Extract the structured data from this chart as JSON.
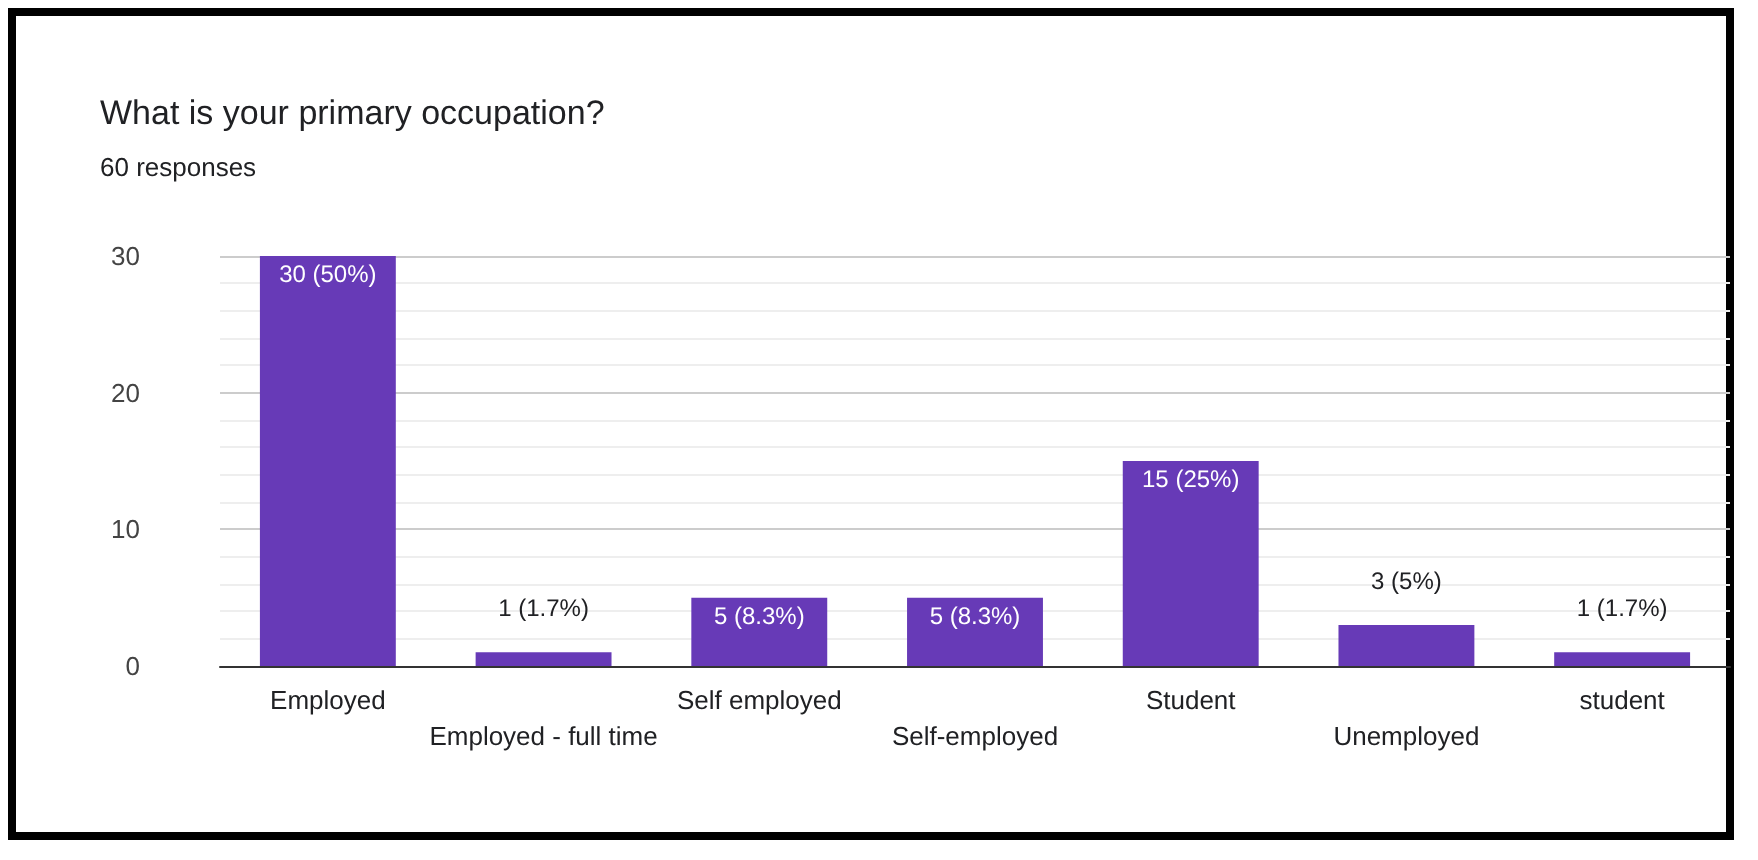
{
  "chart_data": {
    "type": "bar",
    "title": "What is your primary occupation?",
    "subtitle": "60 responses",
    "categories": [
      "Employed",
      "Employed - full time",
      "Self employed",
      "Self-employed",
      "Student",
      "Unemployed",
      "student"
    ],
    "values": [
      30,
      1,
      5,
      5,
      15,
      3,
      1
    ],
    "value_labels": [
      "30 (50%)",
      "1 (1.7%)",
      "5 (8.3%)",
      "5 (8.3%)",
      "15 (25%)",
      "3 (5%)",
      "1 (1.7%)"
    ],
    "color": "#673ab7",
    "ylim": [
      0,
      30
    ],
    "yticks": [
      0,
      10,
      20,
      30
    ],
    "grid": "y"
  }
}
